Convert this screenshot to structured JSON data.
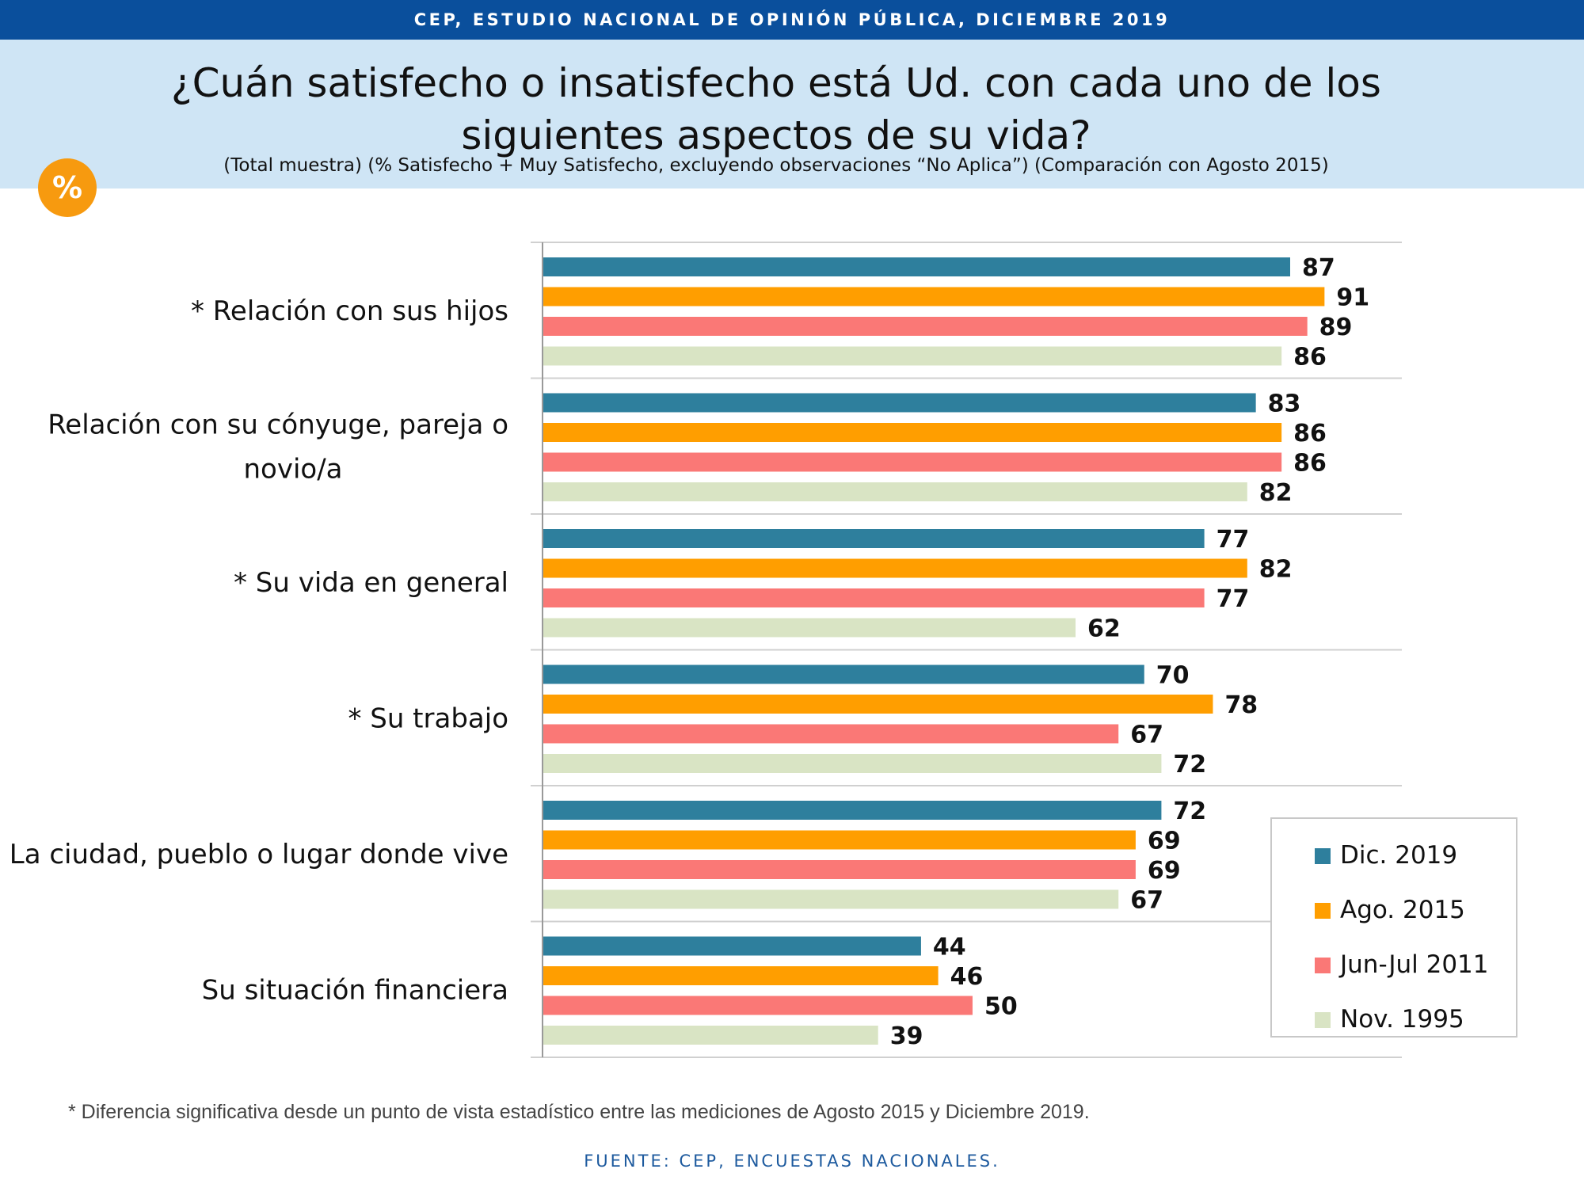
{
  "header": {
    "banner": "CEP, ESTUDIO NACIONAL DE OPINIÓN PÚBLICA, DICIEMBRE 2019",
    "title": "¿Cuán satisfecho o insatisfecho está Ud. con cada uno de los siguientes aspectos de su vida?",
    "subtitle": "(Total muestra) (% Satisfecho + Muy Satisfecho, excluyendo observaciones “No Aplica”) (Comparación con Agosto 2015)",
    "badge": "%"
  },
  "chart_data": {
    "type": "bar",
    "orientation": "horizontal",
    "categories": [
      [
        "* Relación con sus hijos"
      ],
      [
        "Relación con su cónyuge, pareja o",
        "novio/a"
      ],
      [
        "* Su vida en general"
      ],
      [
        "* Su trabajo"
      ],
      [
        "La ciudad, pueblo o lugar donde vive"
      ],
      [
        "Su situación financiera"
      ]
    ],
    "series": [
      {
        "name": "Dic. 2019",
        "color": "#2e7f9d",
        "values": [
          87,
          83,
          77,
          70,
          72,
          44
        ]
      },
      {
        "name": "Ago. 2015",
        "color": "#ff9e00",
        "values": [
          91,
          86,
          82,
          78,
          69,
          46
        ]
      },
      {
        "name": "Jun-Jul 2011",
        "color": "#fa7876",
        "values": [
          89,
          86,
          77,
          67,
          69,
          50
        ]
      },
      {
        "name": "Nov. 1995",
        "color": "#d9e4c4",
        "values": [
          86,
          82,
          62,
          72,
          67,
          39
        ]
      }
    ],
    "xlim": [
      0,
      100
    ],
    "grid": "horizontal separators between categories",
    "legend_position": "bottom-right"
  },
  "footnote": "* Diferencia significativa desde un punto de vista estadístico entre las mediciones de Agosto 2015 y Diciembre 2019.",
  "source": "FUENTE: CEP, ENCUESTAS NACIONALES."
}
